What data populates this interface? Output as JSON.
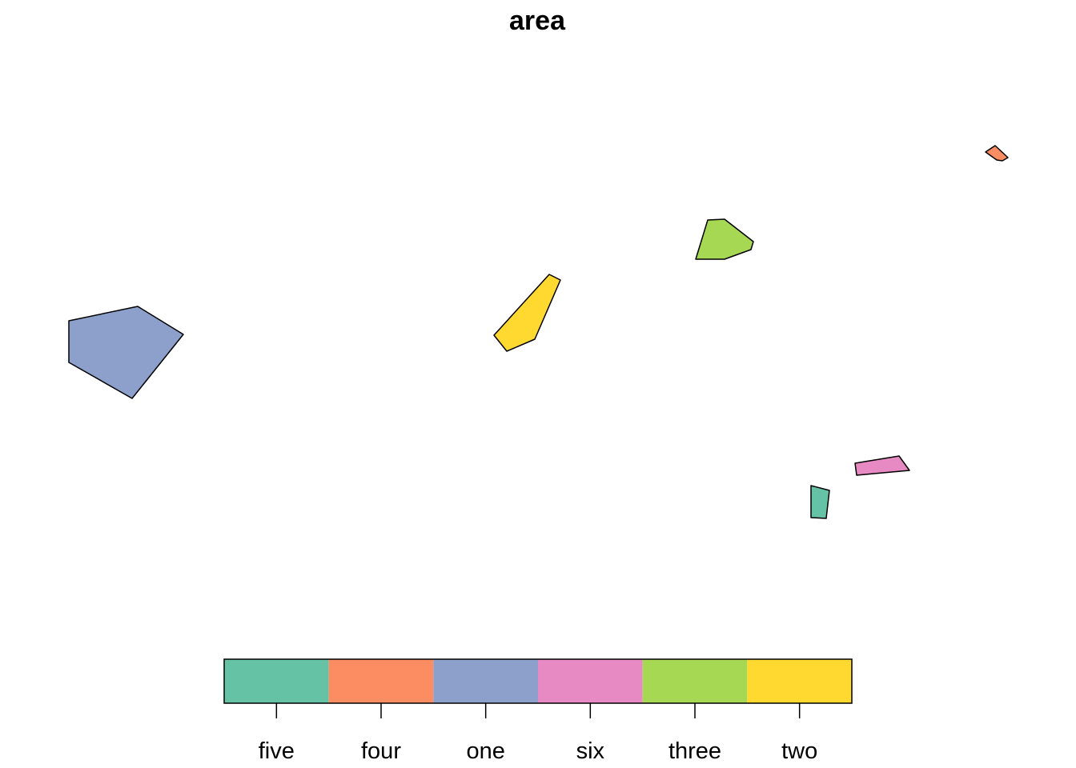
{
  "map": {
    "title": "area",
    "regions": [
      {
        "name": "one",
        "color": "#8DA0CB"
      },
      {
        "name": "two",
        "color": "#FFD92F"
      },
      {
        "name": "three",
        "color": "#A6D854"
      },
      {
        "name": "four",
        "color": "#FC8D62"
      },
      {
        "name": "five",
        "color": "#66C2A5"
      },
      {
        "name": "six",
        "color": "#E78AC3"
      }
    ]
  },
  "legend": {
    "categories": [
      "five",
      "four",
      "one",
      "six",
      "three",
      "two"
    ],
    "colors": [
      "#66C2A5",
      "#FC8D62",
      "#8DA0CB",
      "#E78AC3",
      "#A6D854",
      "#FFD92F"
    ]
  }
}
